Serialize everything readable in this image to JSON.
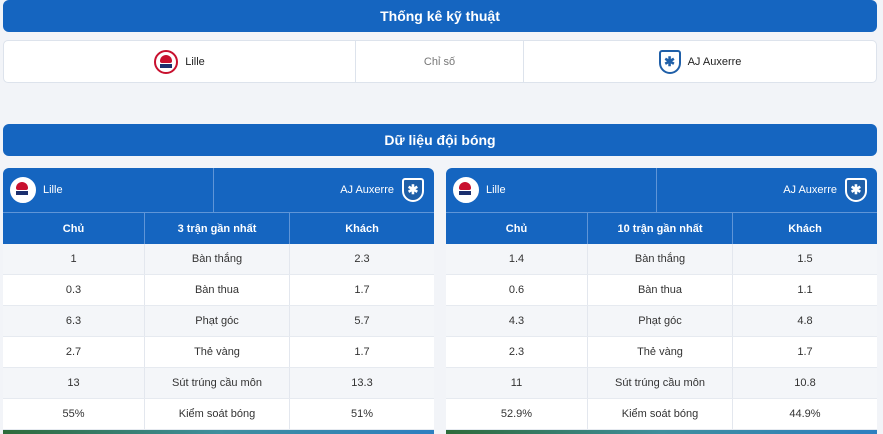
{
  "section1": {
    "title": "Thống kê kỹ thuật"
  },
  "teambar": {
    "home": {
      "name": "Lille",
      "logo_icon": "lille-crest-icon"
    },
    "middle": "Chỉ số",
    "away": {
      "name": "AJ Auxerre",
      "logo_icon": "auxerre-crest-icon"
    }
  },
  "section2": {
    "title": "Dữ liệu đội bóng"
  },
  "panels": [
    {
      "home_team": "Lille",
      "away_team": "AJ Auxerre",
      "columns": [
        "Chủ",
        "3 trận gần nhất",
        "Khách"
      ],
      "rows": [
        {
          "home": "1",
          "stat": "Bàn thắng",
          "away": "2.3"
        },
        {
          "home": "0.3",
          "stat": "Bàn thua",
          "away": "1.7"
        },
        {
          "home": "6.3",
          "stat": "Phạt góc",
          "away": "5.7"
        },
        {
          "home": "2.7",
          "stat": "Thẻ vàng",
          "away": "1.7"
        },
        {
          "home": "13",
          "stat": "Sút trúng cầu môn",
          "away": "13.3"
        },
        {
          "home": "55%",
          "stat": "Kiểm soát bóng",
          "away": "51%"
        }
      ]
    },
    {
      "home_team": "Lille",
      "away_team": "AJ Auxerre",
      "columns": [
        "Chủ",
        "10 trận gần nhất",
        "Khách"
      ],
      "rows": [
        {
          "home": "1.4",
          "stat": "Bàn thắng",
          "away": "1.5"
        },
        {
          "home": "0.6",
          "stat": "Bàn thua",
          "away": "1.1"
        },
        {
          "home": "4.3",
          "stat": "Phạt góc",
          "away": "4.8"
        },
        {
          "home": "2.3",
          "stat": "Thẻ vàng",
          "away": "1.7"
        },
        {
          "home": "11",
          "stat": "Sút trúng cầu môn",
          "away": "10.8"
        },
        {
          "home": "52.9%",
          "stat": "Kiểm soát bóng",
          "away": "44.9%"
        }
      ]
    }
  ],
  "colors": {
    "primary": "#1565c0",
    "lille_red": "#c8102e",
    "auxerre_blue": "#1f5fa8"
  }
}
